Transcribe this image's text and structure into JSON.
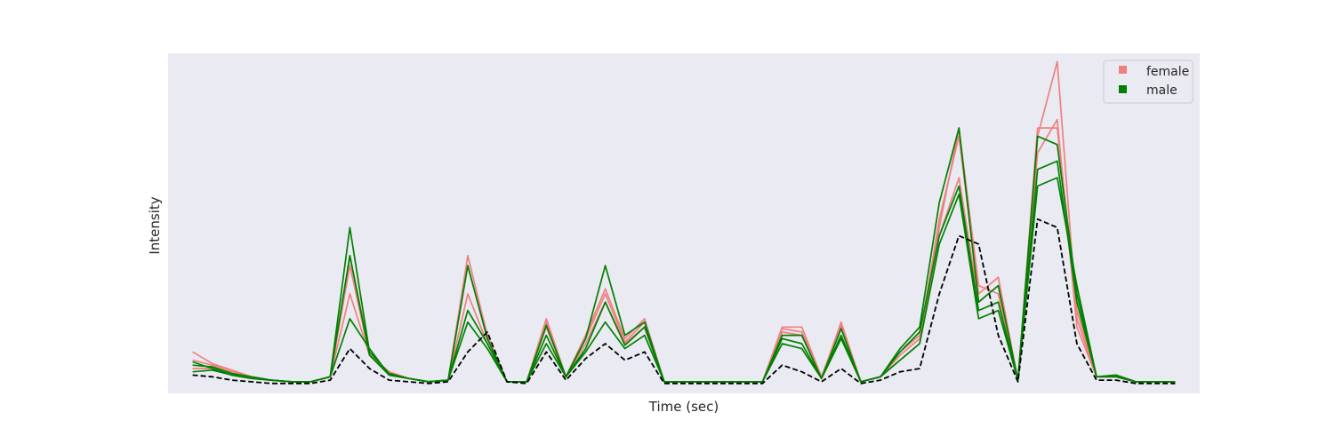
{
  "chart_data": {
    "type": "line",
    "title": "",
    "xlabel": "Time (sec)",
    "ylabel": "Intensity",
    "x_ticks_shown": false,
    "y_ticks_shown": false,
    "grid": false,
    "background_color": "#eaeaf2",
    "legend": {
      "position": "top-right",
      "entries": [
        {
          "label": "female",
          "color": "#f08080",
          "marker": "square"
        },
        {
          "label": "male",
          "color": "#008000",
          "marker": "square"
        }
      ]
    },
    "x": [
      0,
      2,
      4,
      6,
      8,
      10,
      12,
      14,
      16,
      18,
      20,
      22,
      24,
      26,
      28,
      30,
      32,
      34,
      36,
      38,
      40,
      42,
      44,
      46,
      48,
      50,
      52,
      54,
      56,
      58,
      60,
      62,
      64,
      66,
      68,
      70,
      72,
      74,
      76,
      78,
      80,
      82,
      84,
      86,
      88,
      90,
      92,
      94,
      96,
      98,
      100
    ],
    "xlim": [
      -2.5,
      102.5
    ],
    "ylim": [
      -0.05,
      2.0
    ],
    "series": [
      {
        "name": "",
        "group": "female",
        "color": "#f08080",
        "dash": false,
        "values": [
          0.15,
          0.12,
          0.08,
          0.05,
          0.03,
          0.02,
          0.02,
          0.05,
          0.55,
          0.18,
          0.08,
          0.04,
          0.02,
          0.03,
          0.55,
          0.25,
          0.02,
          0.02,
          0.35,
          0.05,
          0.25,
          0.5,
          0.25,
          0.35,
          0.02,
          0.02,
          0.02,
          0.02,
          0.02,
          0.02,
          0.35,
          0.35,
          0.05,
          0.35,
          0.02,
          0.05,
          0.2,
          0.3,
          0.9,
          1.25,
          0.5,
          0.6,
          0.03,
          1.4,
          1.6,
          0.35,
          0.05,
          0.06,
          0.02,
          0.02,
          0.02
        ]
      },
      {
        "name": "",
        "group": "female",
        "color": "#f08080",
        "dash": false,
        "values": [
          0.1,
          0.1,
          0.06,
          0.04,
          0.03,
          0.02,
          0.02,
          0.05,
          0.78,
          0.2,
          0.06,
          0.04,
          0.02,
          0.03,
          0.78,
          0.3,
          0.02,
          0.02,
          0.4,
          0.05,
          0.3,
          0.58,
          0.28,
          0.4,
          0.02,
          0.02,
          0.02,
          0.02,
          0.02,
          0.02,
          0.32,
          0.3,
          0.04,
          0.38,
          0.02,
          0.05,
          0.18,
          0.28,
          1.0,
          1.5,
          0.55,
          0.65,
          0.03,
          1.5,
          1.95,
          0.4,
          0.05,
          0.05,
          0.02,
          0.02,
          0.02
        ]
      },
      {
        "name": "",
        "group": "female",
        "color": "#f08080",
        "dash": false,
        "values": [
          0.2,
          0.13,
          0.09,
          0.05,
          0.03,
          0.02,
          0.02,
          0.05,
          0.72,
          0.18,
          0.07,
          0.04,
          0.02,
          0.03,
          0.72,
          0.28,
          0.02,
          0.02,
          0.38,
          0.05,
          0.28,
          0.55,
          0.26,
          0.38,
          0.02,
          0.02,
          0.02,
          0.02,
          0.02,
          0.02,
          0.34,
          0.32,
          0.05,
          0.36,
          0.02,
          0.05,
          0.15,
          0.25,
          0.95,
          1.55,
          0.6,
          0.55,
          0.03,
          1.55,
          1.55,
          0.45,
          0.05,
          0.06,
          0.02,
          0.02,
          0.02
        ]
      },
      {
        "name": "",
        "group": "male",
        "color": "#008000",
        "dash": false,
        "values": [
          0.12,
          0.11,
          0.07,
          0.05,
          0.03,
          0.02,
          0.02,
          0.05,
          0.95,
          0.2,
          0.07,
          0.04,
          0.02,
          0.03,
          0.72,
          0.28,
          0.02,
          0.02,
          0.36,
          0.05,
          0.28,
          0.72,
          0.3,
          0.38,
          0.02,
          0.02,
          0.02,
          0.02,
          0.02,
          0.02,
          0.3,
          0.3,
          0.04,
          0.34,
          0.02,
          0.05,
          0.22,
          0.35,
          1.1,
          1.55,
          0.5,
          0.6,
          0.03,
          1.5,
          1.45,
          0.55,
          0.05,
          0.06,
          0.02,
          0.02,
          0.02
        ]
      },
      {
        "name": "",
        "group": "male",
        "color": "#008000",
        "dash": false,
        "values": [
          0.08,
          0.09,
          0.06,
          0.04,
          0.03,
          0.02,
          0.02,
          0.05,
          0.78,
          0.18,
          0.06,
          0.04,
          0.02,
          0.03,
          0.45,
          0.25,
          0.02,
          0.02,
          0.3,
          0.05,
          0.22,
          0.5,
          0.24,
          0.35,
          0.02,
          0.02,
          0.02,
          0.02,
          0.02,
          0.02,
          0.28,
          0.25,
          0.04,
          0.3,
          0.02,
          0.05,
          0.15,
          0.25,
          0.85,
          1.15,
          0.4,
          0.45,
          0.03,
          1.3,
          1.35,
          0.5,
          0.05,
          0.05,
          0.02,
          0.02,
          0.02
        ]
      },
      {
        "name": "",
        "group": "male",
        "color": "#008000",
        "dash": false,
        "values": [
          0.14,
          0.1,
          0.06,
          0.04,
          0.03,
          0.02,
          0.02,
          0.05,
          0.4,
          0.22,
          0.06,
          0.04,
          0.02,
          0.03,
          0.38,
          0.22,
          0.02,
          0.02,
          0.25,
          0.05,
          0.2,
          0.38,
          0.22,
          0.3,
          0.02,
          0.02,
          0.02,
          0.02,
          0.02,
          0.02,
          0.25,
          0.22,
          0.04,
          0.28,
          0.02,
          0.05,
          0.2,
          0.32,
          0.9,
          1.2,
          0.45,
          0.5,
          0.03,
          1.2,
          1.25,
          0.6,
          0.05,
          0.05,
          0.02,
          0.02,
          0.02
        ]
      },
      {
        "name": "",
        "group": "reference",
        "color": "#000000",
        "dash": true,
        "values": [
          0.06,
          0.05,
          0.03,
          0.02,
          0.01,
          0.01,
          0.01,
          0.03,
          0.22,
          0.1,
          0.03,
          0.02,
          0.01,
          0.02,
          0.2,
          0.32,
          0.02,
          0.01,
          0.2,
          0.03,
          0.16,
          0.25,
          0.15,
          0.2,
          0.01,
          0.01,
          0.01,
          0.01,
          0.01,
          0.01,
          0.12,
          0.08,
          0.02,
          0.1,
          0.01,
          0.03,
          0.08,
          0.1,
          0.55,
          0.9,
          0.85,
          0.3,
          0.02,
          1.0,
          0.95,
          0.25,
          0.03,
          0.03,
          0.01,
          0.01,
          0.01
        ]
      }
    ]
  }
}
